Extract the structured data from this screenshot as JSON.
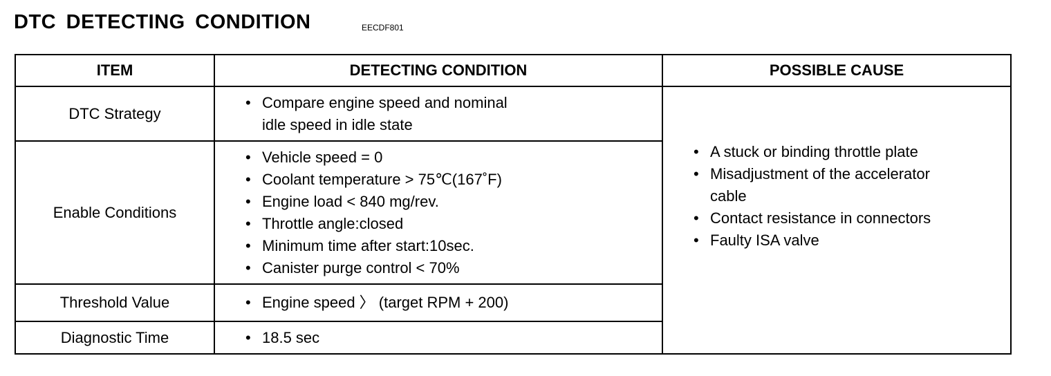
{
  "title": "DTC DETECTING CONDITION",
  "code": "EECDF801",
  "headers": {
    "item": "ITEM",
    "condition": "DETECTING CONDITION",
    "cause": "POSSIBLE CAUSE"
  },
  "rows": [
    {
      "item": "DTC Strategy",
      "conditions": [
        "Compare engine speed and nominal",
        "idle speed in idle state"
      ]
    },
    {
      "item": "Enable Conditions",
      "conditions": [
        "Vehicle speed = 0",
        "Coolant temperature  >  75℃(167˚F)",
        "Engine load  <  840 mg/rev.",
        "Throttle angle:closed",
        "Minimum time after start:10sec.",
        "Canister purge control  <  70%"
      ]
    },
    {
      "item": "Threshold Value",
      "conditions": [
        "Engine speed 〉 (target RPM + 200)"
      ]
    },
    {
      "item": "Diagnostic Time",
      "conditions": [
        "18.5 sec"
      ]
    }
  ],
  "causes": [
    "A stuck or binding throttle plate",
    "Misadjustment of the accelerator",
    "cable",
    "Contact resistance in connectors",
    "Faulty ISA valve"
  ]
}
